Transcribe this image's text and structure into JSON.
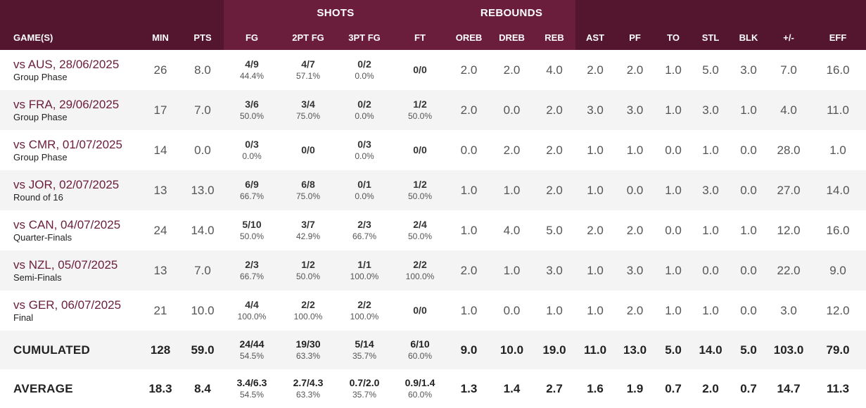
{
  "header_groups": {
    "shots": "SHOTS",
    "rebounds": "REBOUNDS"
  },
  "columns": {
    "game": "GAME(S)",
    "min": "MIN",
    "pts": "PTS",
    "fg": "FG",
    "fg2": "2PT FG",
    "fg3": "3PT FG",
    "ft": "FT",
    "oreb": "OREB",
    "dreb": "DREB",
    "reb": "REB",
    "ast": "AST",
    "pf": "PF",
    "to": "TO",
    "stl": "STL",
    "blk": "BLK",
    "pm": "+/-",
    "eff": "EFF"
  },
  "colors": {
    "header_dark": "#54152e",
    "header_group": "#6b1d3c",
    "opponent_text": "#6b1d3c"
  },
  "games": [
    {
      "opponent": "vs AUS, 28/06/2025",
      "phase": "Group Phase",
      "min": "26",
      "pts": "8.0",
      "fg": "4/9",
      "fg_pct": "44.4%",
      "fg2": "4/7",
      "fg2_pct": "57.1%",
      "fg3": "0/2",
      "fg3_pct": "0.0%",
      "ft": "0/0",
      "ft_pct": "",
      "oreb": "2.0",
      "dreb": "2.0",
      "reb": "4.0",
      "ast": "2.0",
      "pf": "2.0",
      "to": "1.0",
      "stl": "5.0",
      "blk": "3.0",
      "pm": "7.0",
      "eff": "16.0"
    },
    {
      "opponent": "vs FRA, 29/06/2025",
      "phase": "Group Phase",
      "min": "17",
      "pts": "7.0",
      "fg": "3/6",
      "fg_pct": "50.0%",
      "fg2": "3/4",
      "fg2_pct": "75.0%",
      "fg3": "0/2",
      "fg3_pct": "0.0%",
      "ft": "1/2",
      "ft_pct": "50.0%",
      "oreb": "2.0",
      "dreb": "0.0",
      "reb": "2.0",
      "ast": "3.0",
      "pf": "3.0",
      "to": "1.0",
      "stl": "3.0",
      "blk": "1.0",
      "pm": "4.0",
      "eff": "11.0"
    },
    {
      "opponent": "vs CMR, 01/07/2025",
      "phase": "Group Phase",
      "min": "14",
      "pts": "0.0",
      "fg": "0/3",
      "fg_pct": "0.0%",
      "fg2": "0/0",
      "fg2_pct": "",
      "fg3": "0/3",
      "fg3_pct": "0.0%",
      "ft": "0/0",
      "ft_pct": "",
      "oreb": "0.0",
      "dreb": "2.0",
      "reb": "2.0",
      "ast": "1.0",
      "pf": "1.0",
      "to": "0.0",
      "stl": "1.0",
      "blk": "0.0",
      "pm": "28.0",
      "eff": "1.0"
    },
    {
      "opponent": "vs JOR, 02/07/2025",
      "phase": "Round of 16",
      "min": "13",
      "pts": "13.0",
      "fg": "6/9",
      "fg_pct": "66.7%",
      "fg2": "6/8",
      "fg2_pct": "75.0%",
      "fg3": "0/1",
      "fg3_pct": "0.0%",
      "ft": "1/2",
      "ft_pct": "50.0%",
      "oreb": "1.0",
      "dreb": "1.0",
      "reb": "2.0",
      "ast": "1.0",
      "pf": "0.0",
      "to": "1.0",
      "stl": "3.0",
      "blk": "0.0",
      "pm": "27.0",
      "eff": "14.0"
    },
    {
      "opponent": "vs CAN, 04/07/2025",
      "phase": "Quarter-Finals",
      "min": "24",
      "pts": "14.0",
      "fg": "5/10",
      "fg_pct": "50.0%",
      "fg2": "3/7",
      "fg2_pct": "42.9%",
      "fg3": "2/3",
      "fg3_pct": "66.7%",
      "ft": "2/4",
      "ft_pct": "50.0%",
      "oreb": "1.0",
      "dreb": "4.0",
      "reb": "5.0",
      "ast": "2.0",
      "pf": "2.0",
      "to": "0.0",
      "stl": "1.0",
      "blk": "1.0",
      "pm": "12.0",
      "eff": "16.0"
    },
    {
      "opponent": "vs NZL, 05/07/2025",
      "phase": "Semi-Finals",
      "min": "13",
      "pts": "7.0",
      "fg": "2/3",
      "fg_pct": "66.7%",
      "fg2": "1/2",
      "fg2_pct": "50.0%",
      "fg3": "1/1",
      "fg3_pct": "100.0%",
      "ft": "2/2",
      "ft_pct": "100.0%",
      "oreb": "2.0",
      "dreb": "1.0",
      "reb": "3.0",
      "ast": "1.0",
      "pf": "3.0",
      "to": "1.0",
      "stl": "0.0",
      "blk": "0.0",
      "pm": "22.0",
      "eff": "9.0"
    },
    {
      "opponent": "vs GER, 06/07/2025",
      "phase": "Final",
      "min": "21",
      "pts": "10.0",
      "fg": "4/4",
      "fg_pct": "100.0%",
      "fg2": "2/2",
      "fg2_pct": "100.0%",
      "fg3": "2/2",
      "fg3_pct": "100.0%",
      "ft": "0/0",
      "ft_pct": "",
      "oreb": "1.0",
      "dreb": "0.0",
      "reb": "1.0",
      "ast": "1.0",
      "pf": "2.0",
      "to": "1.0",
      "stl": "1.0",
      "blk": "0.0",
      "pm": "3.0",
      "eff": "12.0"
    }
  ],
  "totals": [
    {
      "label": "CUMULATED",
      "min": "128",
      "pts": "59.0",
      "fg": "24/44",
      "fg_pct": "54.5%",
      "fg2": "19/30",
      "fg2_pct": "63.3%",
      "fg3": "5/14",
      "fg3_pct": "35.7%",
      "ft": "6/10",
      "ft_pct": "60.0%",
      "oreb": "9.0",
      "dreb": "10.0",
      "reb": "19.0",
      "ast": "11.0",
      "pf": "13.0",
      "to": "5.0",
      "stl": "14.0",
      "blk": "5.0",
      "pm": "103.0",
      "eff": "79.0"
    },
    {
      "label": "AVERAGE",
      "min": "18.3",
      "pts": "8.4",
      "fg": "3.4/6.3",
      "fg_pct": "54.5%",
      "fg2": "2.7/4.3",
      "fg2_pct": "63.3%",
      "fg3": "0.7/2.0",
      "fg3_pct": "35.7%",
      "ft": "0.9/1.4",
      "ft_pct": "60.0%",
      "oreb": "1.3",
      "dreb": "1.4",
      "reb": "2.7",
      "ast": "1.6",
      "pf": "1.9",
      "to": "0.7",
      "stl": "2.0",
      "blk": "0.7",
      "pm": "14.7",
      "eff": "11.3"
    }
  ]
}
